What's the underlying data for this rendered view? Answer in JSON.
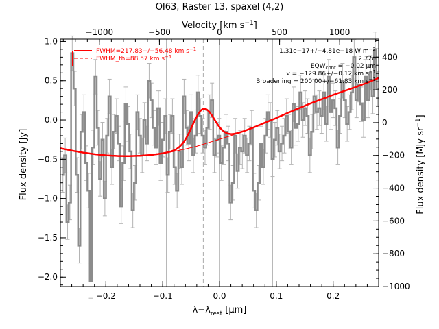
{
  "chart_data": {
    "type": "line",
    "title": "OI63, Raster 13, spaxel (4,2)",
    "xlabel_main": "λ−λ",
    "xlabel_sub": "rest",
    "xlabel_unit": " [μm]",
    "ylabel_left": "Flux density [Jy]",
    "xlabel_top": "Velocity [km s",
    "xlabel_top_sup": "−1",
    "xlabel_top_end": "]",
    "ylabel_right": "Flux density [MJy sr",
    "ylabel_right_sup": "−1",
    "ylabel_right_end": "]",
    "xlim": [
      -0.28,
      0.28
    ],
    "ylim": [
      -2.12,
      1.03
    ],
    "ylim_right": [
      -1000,
      510
    ],
    "xticks": [
      -0.2,
      -0.1,
      0.0,
      0.1,
      0.2
    ],
    "xtick_labels": [
      "−0.2",
      "−0.1",
      "0.0",
      "0.1",
      "0.2"
    ],
    "yticks": [
      -2.0,
      -1.5,
      -1.0,
      -0.5,
      0.0,
      0.5,
      1.0
    ],
    "ytick_labels": [
      "−2.0",
      "−1.5",
      "−1.0",
      "−0.5",
      "0.0",
      "0.5",
      "1.0"
    ],
    "yticks_right": [
      -1000,
      -800,
      -600,
      -400,
      -200,
      0,
      200,
      400
    ],
    "ytick_right_labels": [
      "−1000",
      "−800",
      "−600",
      "−400",
      "−200",
      "0",
      "200",
      "400"
    ],
    "top_ticks": [
      -1000,
      -500,
      0,
      500,
      1000
    ],
    "top_tick_labels": [
      "−1000",
      "−500",
      "0",
      "500",
      "1000"
    ],
    "top_axis_scale": {
      "um_per_kms": 0.0002114
    },
    "vertical_lines": [
      -0.093,
      0.0,
      0.093
    ],
    "line_center": -0.0285,
    "legend": [
      {
        "label": "FWHM=217.83+/−56.48 km s",
        "sup": "−1",
        "style": "solid",
        "color": "#ff0000"
      },
      {
        "label": "FWHM_th=88.57 km s",
        "sup": "−1",
        "style": "dashed",
        "color": "#ff0000"
      }
    ],
    "annotations": [
      {
        "prefix": "1.31e−17+/−4.81e−18 W m",
        "sup": "−2"
      },
      {
        "prefix": "2.72σ",
        "sup": ""
      },
      {
        "prefix": "EQW",
        "sub": "cont",
        "suffix": " = −0.02 μm"
      },
      {
        "prefix": "v = −129.86+/−0.12 km s",
        "sup": "−1"
      },
      {
        "prefix": "Broadening = 200.00+/−61.83 km s",
        "sup": "−1"
      }
    ],
    "colors": {
      "data": "#8c8c8c",
      "error": "#b4b4b4",
      "fit": "#ff0000",
      "component": "#ff8c00",
      "axis_line": "#808080"
    },
    "series": [
      {
        "role": "data",
        "x": [
          -0.2755,
          -0.2714,
          -0.2673,
          -0.2632,
          -0.2591,
          -0.255,
          -0.2509,
          -0.2468,
          -0.2427,
          -0.2386,
          -0.2345,
          -0.2304,
          -0.2263,
          -0.2222,
          -0.2181,
          -0.214,
          -0.2099,
          -0.2058,
          -0.2017,
          -0.1976,
          -0.1935,
          -0.1894,
          -0.1853,
          -0.1812,
          -0.1771,
          -0.173,
          -0.1689,
          -0.1648,
          -0.1607,
          -0.1566,
          -0.1525,
          -0.1484,
          -0.1443,
          -0.1402,
          -0.1361,
          -0.132,
          -0.1279,
          -0.1238,
          -0.1197,
          -0.1156,
          -0.1115,
          -0.1074,
          -0.1033,
          -0.0992,
          -0.0951,
          -0.091,
          -0.0869,
          -0.0828,
          -0.0787,
          -0.0746,
          -0.0705,
          -0.0664,
          -0.0623,
          -0.0582,
          -0.0541,
          -0.05,
          -0.0459,
          -0.0418,
          -0.0377,
          -0.0336,
          -0.0295,
          -0.0254,
          -0.0213,
          -0.0172,
          -0.0131,
          -0.009,
          -0.0049,
          -0.0008,
          0.0033,
          0.0074,
          0.0115,
          0.0156,
          0.0197,
          0.0238,
          0.0279,
          0.032,
          0.0361,
          0.0402,
          0.0443,
          0.0484,
          0.0525,
          0.0566,
          0.0607,
          0.0648,
          0.0689,
          0.073,
          0.0771,
          0.0812,
          0.0853,
          0.0894,
          0.0935,
          0.0976,
          0.1017,
          0.1058,
          0.1099,
          0.114,
          0.1181,
          0.1222,
          0.1263,
          0.1304,
          0.1345,
          0.1386,
          0.1427,
          0.1468,
          0.1509,
          0.155,
          0.1591,
          0.1632,
          0.1673,
          0.1714,
          0.1755,
          0.1796,
          0.1837,
          0.1878,
          0.1919,
          0.196,
          0.2001,
          0.2042,
          0.2083,
          0.2124,
          0.2165,
          0.2206,
          0.2247,
          0.2288,
          0.2329,
          0.237,
          0.2411,
          0.2452,
          0.2493,
          0.2534,
          0.2575,
          0.2616,
          0.2657,
          0.2698,
          0.2739,
          0.278
        ],
        "y": [
          -0.7,
          -0.45,
          -1.3,
          -1.05,
          0.85,
          0.4,
          -0.7,
          -1.6,
          -0.15,
          0.1,
          -0.55,
          -0.9,
          -2.05,
          -0.35,
          0.55,
          -0.1,
          -0.75,
          -0.25,
          -1.0,
          -0.2,
          0.3,
          -0.6,
          -0.15,
          0.05,
          -0.3,
          -1.1,
          -0.55,
          0.2,
          -0.05,
          -0.4,
          -1.15,
          -0.8,
          0.1,
          -0.2,
          -0.45,
          0.0,
          -0.3,
          0.5,
          0.25,
          -0.1,
          -0.35,
          0.15,
          -0.55,
          -0.25,
          0.05,
          -0.7,
          -0.15,
          0.05,
          -0.6,
          -0.9,
          -0.4,
          -0.6,
          0.3,
          -0.1,
          -0.3,
          0.1,
          -0.45,
          -0.2,
          0.35,
          0.05,
          -0.2,
          -0.35,
          -0.1,
          0.1,
          0.25,
          -0.45,
          -0.25,
          -0.2,
          -0.55,
          -0.35,
          -0.15,
          -0.3,
          -1.05,
          -0.8,
          -0.2,
          -0.65,
          -0.35,
          -0.4,
          -0.2,
          -0.45,
          -0.3,
          -0.1,
          -0.9,
          -1.15,
          -0.8,
          -0.3,
          -0.6,
          -0.2,
          0.1,
          0.0,
          -0.5,
          -0.25,
          -0.1,
          -0.4,
          -0.3,
          -0.2,
          0.05,
          -0.15,
          -0.35,
          0.2,
          -0.1,
          -0.05,
          0.35,
          0.0,
          0.15,
          0.05,
          -0.45,
          -0.15,
          0.3,
          0.1,
          0.15,
          0.05,
          0.35,
          -0.05,
          0.55,
          0.1,
          0.25,
          0.15,
          -0.35,
          0.05,
          0.5,
          0.25,
          -0.05,
          0.1,
          0.35,
          0.8,
          0.25,
          0.45,
          0.2,
          0.0,
          0.55,
          0.25,
          0.6,
          0.3,
          0.9,
          0.4
        ],
        "yerr": 0.22
      },
      {
        "role": "baseline",
        "x": [
          -0.28,
          -0.26,
          -0.24,
          -0.22,
          -0.2,
          -0.18,
          -0.16,
          -0.14,
          -0.12,
          -0.1,
          -0.08,
          -0.06,
          -0.04,
          -0.02,
          0.0,
          0.02,
          0.04,
          0.06,
          0.08,
          0.1,
          0.12,
          0.14,
          0.16,
          0.18,
          0.2,
          0.22,
          0.24,
          0.26,
          0.28
        ],
        "y": [
          -0.36,
          -0.39,
          -0.415,
          -0.435,
          -0.45,
          -0.458,
          -0.46,
          -0.455,
          -0.445,
          -0.425,
          -0.4,
          -0.37,
          -0.335,
          -0.29,
          -0.245,
          -0.2,
          -0.15,
          -0.095,
          -0.035,
          0.025,
          0.09,
          0.15,
          0.21,
          0.265,
          0.32,
          0.37,
          0.42,
          0.475,
          0.535
        ]
      },
      {
        "role": "gaussian",
        "center": -0.0285,
        "amplitude": 0.45,
        "fwhm": 0.046
      }
    ]
  }
}
